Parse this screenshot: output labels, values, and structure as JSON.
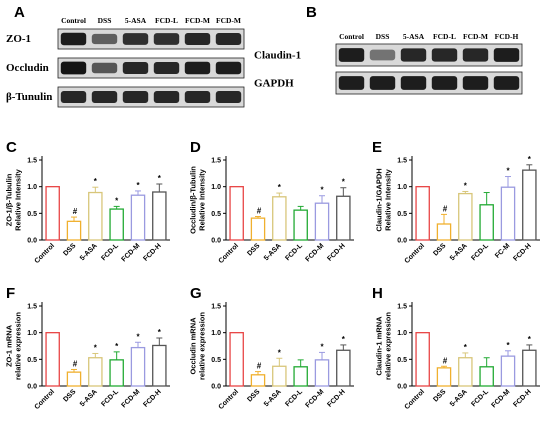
{
  "panel_labels": {
    "A": "A",
    "B": "B",
    "C": "C",
    "D": "D",
    "E": "E",
    "F": "F",
    "G": "G",
    "H": "H"
  },
  "blot_a": {
    "lanes": [
      "Control",
      "DSS",
      "5-ASA",
      "FCD-L",
      "FCD-M",
      "FCD-M"
    ],
    "rows": [
      {
        "label": "ZO-1",
        "intensity": [
          0.9,
          0.55,
          0.8,
          0.8,
          0.85,
          0.85
        ]
      },
      {
        "label": "Occludin",
        "intensity": [
          0.95,
          0.6,
          0.85,
          0.85,
          0.9,
          0.9
        ]
      },
      {
        "label": "β-Tunulin",
        "intensity": [
          0.85,
          0.85,
          0.85,
          0.85,
          0.85,
          0.85
        ]
      }
    ]
  },
  "blot_b": {
    "lanes": [
      "Control",
      "DSS",
      "5-ASA",
      "FCD-L",
      "FCD-M",
      "FCD-H"
    ],
    "rows": [
      {
        "label": "Claudin-1",
        "intensity": [
          0.9,
          0.45,
          0.85,
          0.85,
          0.85,
          0.9
        ]
      },
      {
        "label": "GAPDH",
        "intensity": [
          0.9,
          0.9,
          0.9,
          0.9,
          0.9,
          0.9
        ]
      }
    ]
  },
  "colors": [
    "#e84545",
    "#f0b02e",
    "#d8c67a",
    "#22aa33",
    "#9a9ae0",
    "#555555"
  ],
  "chart_data": [
    {
      "panel": "C",
      "type": "bar",
      "ylabel": "ZO-1/β-Tubulin\nRelative Intensity",
      "ylim": [
        0,
        1.5
      ],
      "yticks": [
        "0.0",
        "0.5",
        "1.0",
        "1.5"
      ],
      "categories": [
        "Control",
        "DSS",
        "5-ASA",
        "FCD-L",
        "FCD-M",
        "FCD-H"
      ],
      "values": [
        1.0,
        0.35,
        0.89,
        0.58,
        0.84,
        0.9
      ],
      "errors": [
        0,
        0.08,
        0.1,
        0.05,
        0.08,
        0.15
      ],
      "sig": [
        "",
        "#",
        "*",
        "*",
        "*",
        "*"
      ]
    },
    {
      "panel": "D",
      "type": "bar",
      "ylabel": "Occludin/β-Tubulin\nRelative Intensity",
      "ylim": [
        0,
        1.5
      ],
      "yticks": [
        "0.0",
        "0.5",
        "1.0",
        "1.5"
      ],
      "categories": [
        "Control",
        "DSS",
        "5-ASA",
        "FCD-L",
        "FCD-M",
        "FCD-H"
      ],
      "values": [
        1.0,
        0.41,
        0.81,
        0.56,
        0.69,
        0.82
      ],
      "errors": [
        0,
        0.03,
        0.07,
        0.07,
        0.14,
        0.16
      ],
      "sig": [
        "",
        "#",
        "*",
        "",
        "*",
        "*"
      ]
    },
    {
      "panel": "E",
      "type": "bar",
      "ylabel": "Claudin-1/GAPDH\nRelative Intensity",
      "ylim": [
        0,
        1.5
      ],
      "yticks": [
        "0.0",
        "0.5",
        "1.0",
        "1.5"
      ],
      "categories": [
        "Control",
        "DSS",
        "5-ASA",
        "FCD-L",
        "FC-M",
        "FCD-H"
      ],
      "values": [
        1.0,
        0.3,
        0.87,
        0.66,
        0.99,
        1.31
      ],
      "errors": [
        0,
        0.18,
        0.04,
        0.23,
        0.2,
        0.1
      ],
      "sig": [
        "",
        "#",
        "*",
        "",
        "*",
        "*"
      ]
    },
    {
      "panel": "F",
      "type": "bar",
      "ylabel": "ZO-1 mRNA\nrelative expression",
      "ylim": [
        0,
        1.5
      ],
      "yticks": [
        "0.0",
        "0.5",
        "1.0",
        "1.5"
      ],
      "categories": [
        "Control",
        "DSS",
        "5-ASA",
        "FCD-L",
        "FCD-M",
        "FCD-H"
      ],
      "values": [
        1.0,
        0.26,
        0.53,
        0.49,
        0.72,
        0.76
      ],
      "errors": [
        0,
        0.05,
        0.08,
        0.15,
        0.1,
        0.14
      ],
      "sig": [
        "",
        "#",
        "*",
        "*",
        "*",
        "*"
      ]
    },
    {
      "panel": "G",
      "type": "bar",
      "ylabel": "Occludin mRNA\nrelative expression",
      "ylim": [
        0,
        1.5
      ],
      "yticks": [
        "0.0",
        "0.5",
        "1.0",
        "1.5"
      ],
      "categories": [
        "Control",
        "DSS",
        "5-ASA",
        "FCD-L",
        "FCD-M",
        "FCD-H"
      ],
      "values": [
        1.0,
        0.21,
        0.37,
        0.36,
        0.49,
        0.67
      ],
      "errors": [
        0,
        0.06,
        0.15,
        0.13,
        0.14,
        0.1
      ],
      "sig": [
        "",
        "#",
        "*",
        "",
        "*",
        "*"
      ]
    },
    {
      "panel": "H",
      "type": "bar",
      "ylabel": "Claudin-1 mRNA\nrelative expression",
      "ylim": [
        0,
        1.5
      ],
      "yticks": [
        "0.0",
        "0.5",
        "1.0",
        "1.5"
      ],
      "categories": [
        "Control",
        "DSS",
        "5-ASA",
        "FCD-L",
        "FCD-M",
        "FCD-H"
      ],
      "values": [
        1.0,
        0.34,
        0.53,
        0.36,
        0.56,
        0.67
      ],
      "errors": [
        0,
        0.03,
        0.09,
        0.17,
        0.1,
        0.1
      ],
      "sig": [
        "",
        "#",
        "*",
        "",
        "*",
        "*"
      ]
    }
  ]
}
